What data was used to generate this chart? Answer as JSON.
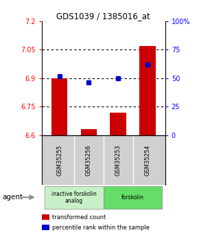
{
  "title": "GDS1039 / 1385016_at",
  "samples": [
    "GSM35255",
    "GSM35256",
    "GSM35253",
    "GSM35254"
  ],
  "red_values": [
    6.9,
    6.63,
    6.72,
    7.07
  ],
  "blue_percentiles": [
    52,
    46,
    50,
    62
  ],
  "ylim_left": [
    6.6,
    7.2
  ],
  "ylim_right": [
    0,
    100
  ],
  "yticks_left": [
    6.6,
    6.75,
    6.9,
    7.05,
    7.2
  ],
  "ytick_labels_left": [
    "6.6",
    "6.75",
    "6.9",
    "7.05",
    "7.2"
  ],
  "yticks_right": [
    0,
    25,
    50,
    75,
    100
  ],
  "ytick_labels_right": [
    "0",
    "25",
    "50",
    "75",
    "100%"
  ],
  "grid_lines": [
    6.75,
    6.9,
    7.05
  ],
  "agent_groups": [
    {
      "label": "inactive forskolin\nanalog",
      "start": 0,
      "end": 2,
      "color": "#c8f0c8"
    },
    {
      "label": "forskolin",
      "start": 2,
      "end": 4,
      "color": "#66dd66"
    }
  ],
  "bar_color": "#cc0000",
  "dot_color": "#0000cc",
  "bar_width": 0.55,
  "legend_items": [
    {
      "color": "#cc0000",
      "label": "transformed count"
    },
    {
      "color": "#0000cc",
      "label": "percentile rank within the sample"
    }
  ],
  "agent_label": "agent",
  "background_color": "#ffffff"
}
